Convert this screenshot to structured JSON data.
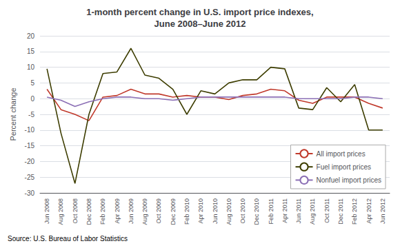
{
  "chart_data": {
    "type": "line",
    "title": "1-month percent change in U.S. import price indexes,\nJune 2008–June 2012",
    "ylabel": "Percent change",
    "source": "Source: U.S. Bureau of Labor Statistics",
    "categories": [
      "Jun 2008",
      "Aug 2008",
      "Oct 2008",
      "Dec 2008",
      "Feb 2009",
      "Apr 2009",
      "Jun 2009",
      "Aug 2009",
      "Oct 2009",
      "Dec 2009",
      "Feb 2010",
      "Apr 2010",
      "Jun 2010",
      "Aug 2010",
      "Oct 2010",
      "Dec 2010",
      "Feb 2011",
      "Apr 2011",
      "Jun 2011",
      "Aug 2011",
      "Oct 2011",
      "Dec 2011",
      "Feb 2012",
      "Apr 2012",
      "Jun 2012"
    ],
    "series": [
      {
        "name": "All import prices",
        "color": "#c0392b",
        "values": [
          3.0,
          -3.5,
          -5.0,
          -7.0,
          0.5,
          1.0,
          3.0,
          1.5,
          1.5,
          0.5,
          1.0,
          0.5,
          0.5,
          -0.3,
          1.0,
          1.5,
          3.0,
          2.5,
          -0.5,
          -1.5,
          0.5,
          0.5,
          0.5,
          -1.5,
          -3.0
        ]
      },
      {
        "name": "Fuel import prices",
        "color": "#3d3d00",
        "values": [
          9.5,
          -11.0,
          -27.0,
          -5.0,
          8.0,
          8.5,
          16.0,
          7.5,
          6.5,
          3.0,
          -5.0,
          2.5,
          1.5,
          5.0,
          6.0,
          6.0,
          10.0,
          9.5,
          -3.0,
          -3.5,
          3.5,
          -1.0,
          4.5,
          -10.0,
          -10.0
        ]
      },
      {
        "name": "Nonfuel import prices",
        "color": "#8b6fb5",
        "values": [
          0.5,
          -0.5,
          -2.5,
          -1.0,
          0.0,
          0.5,
          0.5,
          0.0,
          0.0,
          -0.5,
          0.0,
          0.5,
          0.5,
          0.5,
          0.5,
          0.5,
          0.5,
          0.5,
          0.0,
          0.0,
          0.0,
          0.0,
          0.5,
          0.5,
          0.0
        ]
      }
    ],
    "ylim": [
      -30,
      20
    ],
    "yticks": [
      -30,
      -25,
      -20,
      -15,
      -10,
      -5,
      0,
      5,
      10,
      15,
      20
    ],
    "grid": true,
    "legend": "lower right"
  }
}
